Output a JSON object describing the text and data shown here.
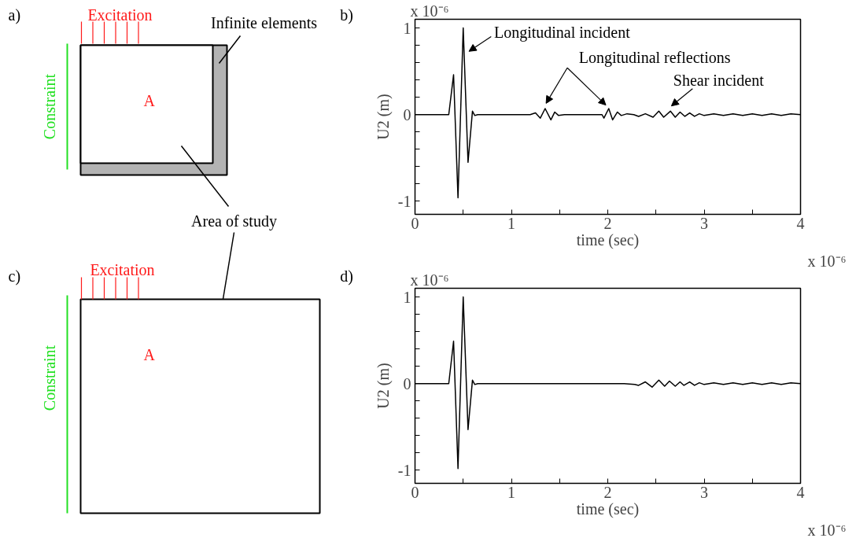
{
  "chart_data": [
    {
      "type": "other",
      "title": "a)",
      "annotations": [
        "Excitation",
        "Constraint",
        "A",
        "Infinite elements",
        "Area of study"
      ]
    },
    {
      "type": "line",
      "title": "b)",
      "xlabel": "time (sec)",
      "ylabel": "U2 (m)",
      "color": "#000000",
      "x": [
        0,
        0.35,
        0.4,
        0.446,
        0.5,
        0.55,
        0.596,
        0.62,
        0.65,
        1.195,
        1.25,
        1.3,
        1.35,
        1.41,
        1.45,
        1.49,
        1.55,
        1.94,
        1.96,
        2.01,
        2.05,
        2.1,
        2.14,
        2.2,
        2.27,
        2.32,
        2.39,
        2.47,
        2.53,
        2.58,
        2.65,
        2.7,
        2.75,
        2.8,
        2.85,
        2.9,
        2.95,
        3.0,
        3.1,
        3.2,
        3.3,
        3.4,
        3.5,
        3.6,
        3.7,
        3.8,
        3.9,
        4.0
      ],
      "values": [
        0,
        0,
        0.46,
        -0.96,
        1.0,
        -0.55,
        0.04,
        -0.01,
        0,
        0,
        0.02,
        -0.04,
        0.07,
        -0.06,
        0.03,
        -0.01,
        0,
        0,
        -0.04,
        0.07,
        -0.06,
        0.03,
        -0.01,
        0.01,
        0,
        -0.02,
        0.01,
        -0.03,
        0.04,
        -0.03,
        0.04,
        -0.03,
        0.03,
        -0.02,
        0.02,
        -0.02,
        0.01,
        -0.01,
        0.01,
        -0.01,
        0.01,
        -0.01,
        0.01,
        -0.01,
        0.01,
        -0.01,
        0.01,
        0
      ],
      "xlim": [
        0,
        4
      ],
      "ylim": [
        -1.15,
        1.1
      ],
      "xticks": [
        0,
        {
          "value": 0.5,
          "label": null
        },
        1,
        {
          "value": 1.5,
          "label": null
        },
        2,
        {
          "value": 2.5,
          "label": null
        },
        3,
        {
          "value": 3.5,
          "label": null
        },
        4
      ],
      "yticks": [
        -1,
        {
          "value": -0.8,
          "label": null
        },
        {
          "value": -0.6,
          "label": null
        },
        {
          "value": -0.4,
          "label": null
        },
        {
          "value": -0.2,
          "label": null
        },
        0,
        {
          "value": 0.2,
          "label": null
        },
        {
          "value": 0.4,
          "label": null
        },
        {
          "value": 0.6,
          "label": null
        },
        {
          "value": 0.8,
          "label": null
        },
        1
      ],
      "grid": false,
      "annotations": [
        "x 10⁻⁶",
        "x 10⁻⁶",
        "Longitudinal incident",
        "Longitudinal reflections",
        "Shear incident"
      ]
    },
    {
      "type": "other",
      "title": "c)",
      "annotations": [
        "Excitation",
        "Constraint",
        "A"
      ]
    },
    {
      "type": "line",
      "title": "d)",
      "xlabel": "time (sec)",
      "ylabel": "U2 (m)",
      "color": "#000000",
      "x": [
        0,
        0.35,
        0.4,
        0.446,
        0.5,
        0.55,
        0.596,
        0.62,
        0.65,
        2.17,
        2.28,
        2.32,
        2.39,
        2.46,
        2.53,
        2.59,
        2.64,
        2.7,
        2.75,
        2.79,
        2.85,
        2.9,
        2.95,
        3.0,
        3.1,
        3.2,
        3.3,
        3.4,
        3.5,
        3.6,
        3.7,
        3.8,
        3.9,
        4.0
      ],
      "values": [
        0,
        0,
        0.49,
        -0.98,
        1.0,
        -0.53,
        0.04,
        -0.01,
        0,
        0,
        -0.01,
        -0.02,
        0.02,
        -0.04,
        0.04,
        -0.03,
        0.03,
        -0.03,
        0.02,
        -0.02,
        0.02,
        -0.02,
        0.01,
        -0.01,
        0.01,
        -0.01,
        0.01,
        -0.01,
        0.01,
        -0.01,
        0.01,
        -0.01,
        0.01,
        0
      ],
      "xlim": [
        0,
        4
      ],
      "ylim": [
        -1.15,
        1.1
      ],
      "xticks": [
        0,
        {
          "value": 0.5,
          "label": null
        },
        1,
        {
          "value": 1.5,
          "label": null
        },
        2,
        {
          "value": 2.5,
          "label": null
        },
        3,
        {
          "value": 3.5,
          "label": null
        },
        4
      ],
      "yticks": [
        -1,
        {
          "value": -0.8,
          "label": null
        },
        {
          "value": -0.6,
          "label": null
        },
        {
          "value": -0.4,
          "label": null
        },
        {
          "value": -0.2,
          "label": null
        },
        0,
        {
          "value": 0.2,
          "label": null
        },
        {
          "value": 0.4,
          "label": null
        },
        {
          "value": 0.6,
          "label": null
        },
        {
          "value": 0.8,
          "label": null
        },
        1
      ],
      "grid": false,
      "annotations": [
        "x 10⁻⁶",
        "x 10⁻⁶"
      ]
    }
  ]
}
